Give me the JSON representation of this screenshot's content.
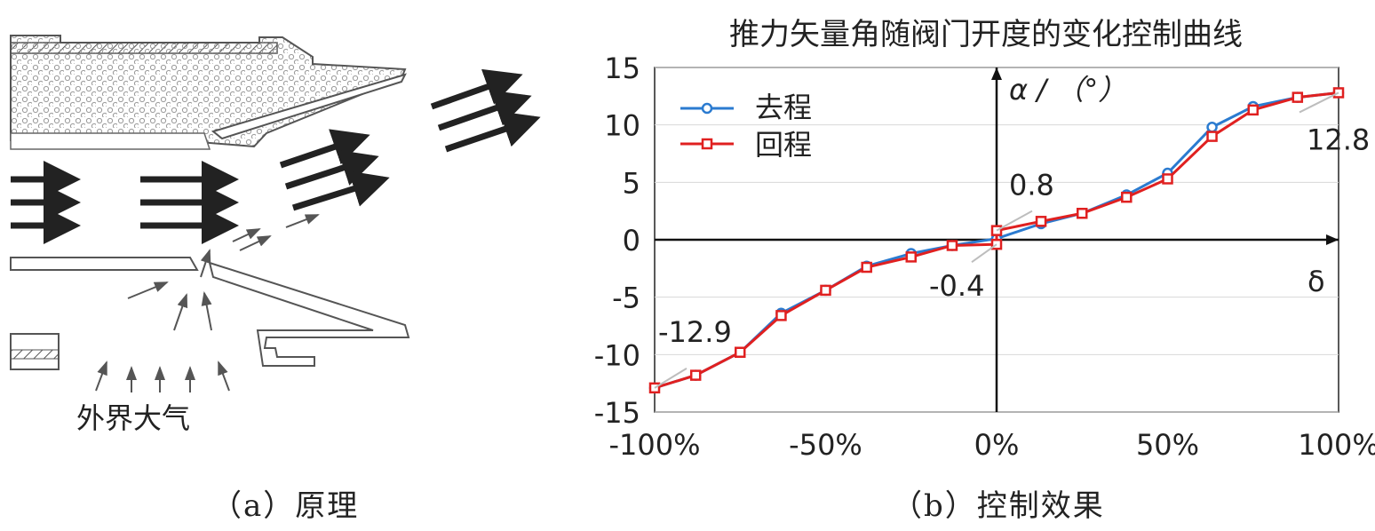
{
  "panel_a": {
    "annotation": "外界大气",
    "caption": "（a）原理"
  },
  "panel_b": {
    "caption": "（b）控制效果"
  },
  "colors": {
    "series_out": "#2b7bd0",
    "series_back": "#e02020",
    "axis": "#111111",
    "grid": "#d8d8d8",
    "leader": "#bdbdbd"
  },
  "chart_data": {
    "type": "line",
    "title": "推力矢量角随阀门开度的变化控制曲线",
    "xlabel": "δ",
    "ylabel": "α / （°）",
    "xlim": [
      -100,
      100
    ],
    "ylim": [
      -15,
      15
    ],
    "x_ticks": [
      "-100%",
      "-50%",
      "0%",
      "50%",
      "100%"
    ],
    "y_ticks": [
      "15",
      "10",
      "5",
      "0",
      "-5",
      "-10",
      "-15"
    ],
    "grid": true,
    "legend_position": "top-left",
    "series": [
      {
        "name": "去程",
        "marker": "circle",
        "x": [
          -100,
          -88,
          -75,
          -63,
          -50,
          -38,
          -25,
          -13,
          0,
          13,
          25,
          38,
          50,
          63,
          75,
          88,
          100
        ],
        "y": [
          -12.9,
          -11.8,
          -9.8,
          -6.4,
          -4.4,
          -2.3,
          -1.2,
          -0.5,
          0.1,
          1.4,
          2.3,
          3.9,
          5.8,
          9.8,
          11.6,
          12.4,
          12.8
        ]
      },
      {
        "name": "回程",
        "marker": "square",
        "x": [
          -100,
          -88,
          -75,
          -63,
          -50,
          -38,
          -25,
          -13,
          0,
          0,
          13,
          25,
          38,
          50,
          63,
          75,
          88,
          100
        ],
        "y": [
          -12.9,
          -11.8,
          -9.8,
          -6.6,
          -4.4,
          -2.4,
          -1.5,
          -0.5,
          -0.4,
          0.8,
          1.6,
          2.3,
          3.7,
          5.3,
          9.0,
          11.3,
          12.4,
          12.8
        ]
      }
    ],
    "annotations": [
      {
        "text": "12.8",
        "x": 100,
        "y": 12.8
      },
      {
        "text": "0.8",
        "x": 0,
        "y": 0.8
      },
      {
        "text": "-0.4",
        "x": 0,
        "y": -0.4
      },
      {
        "text": "-12.9",
        "x": -100,
        "y": -12.9
      }
    ]
  }
}
